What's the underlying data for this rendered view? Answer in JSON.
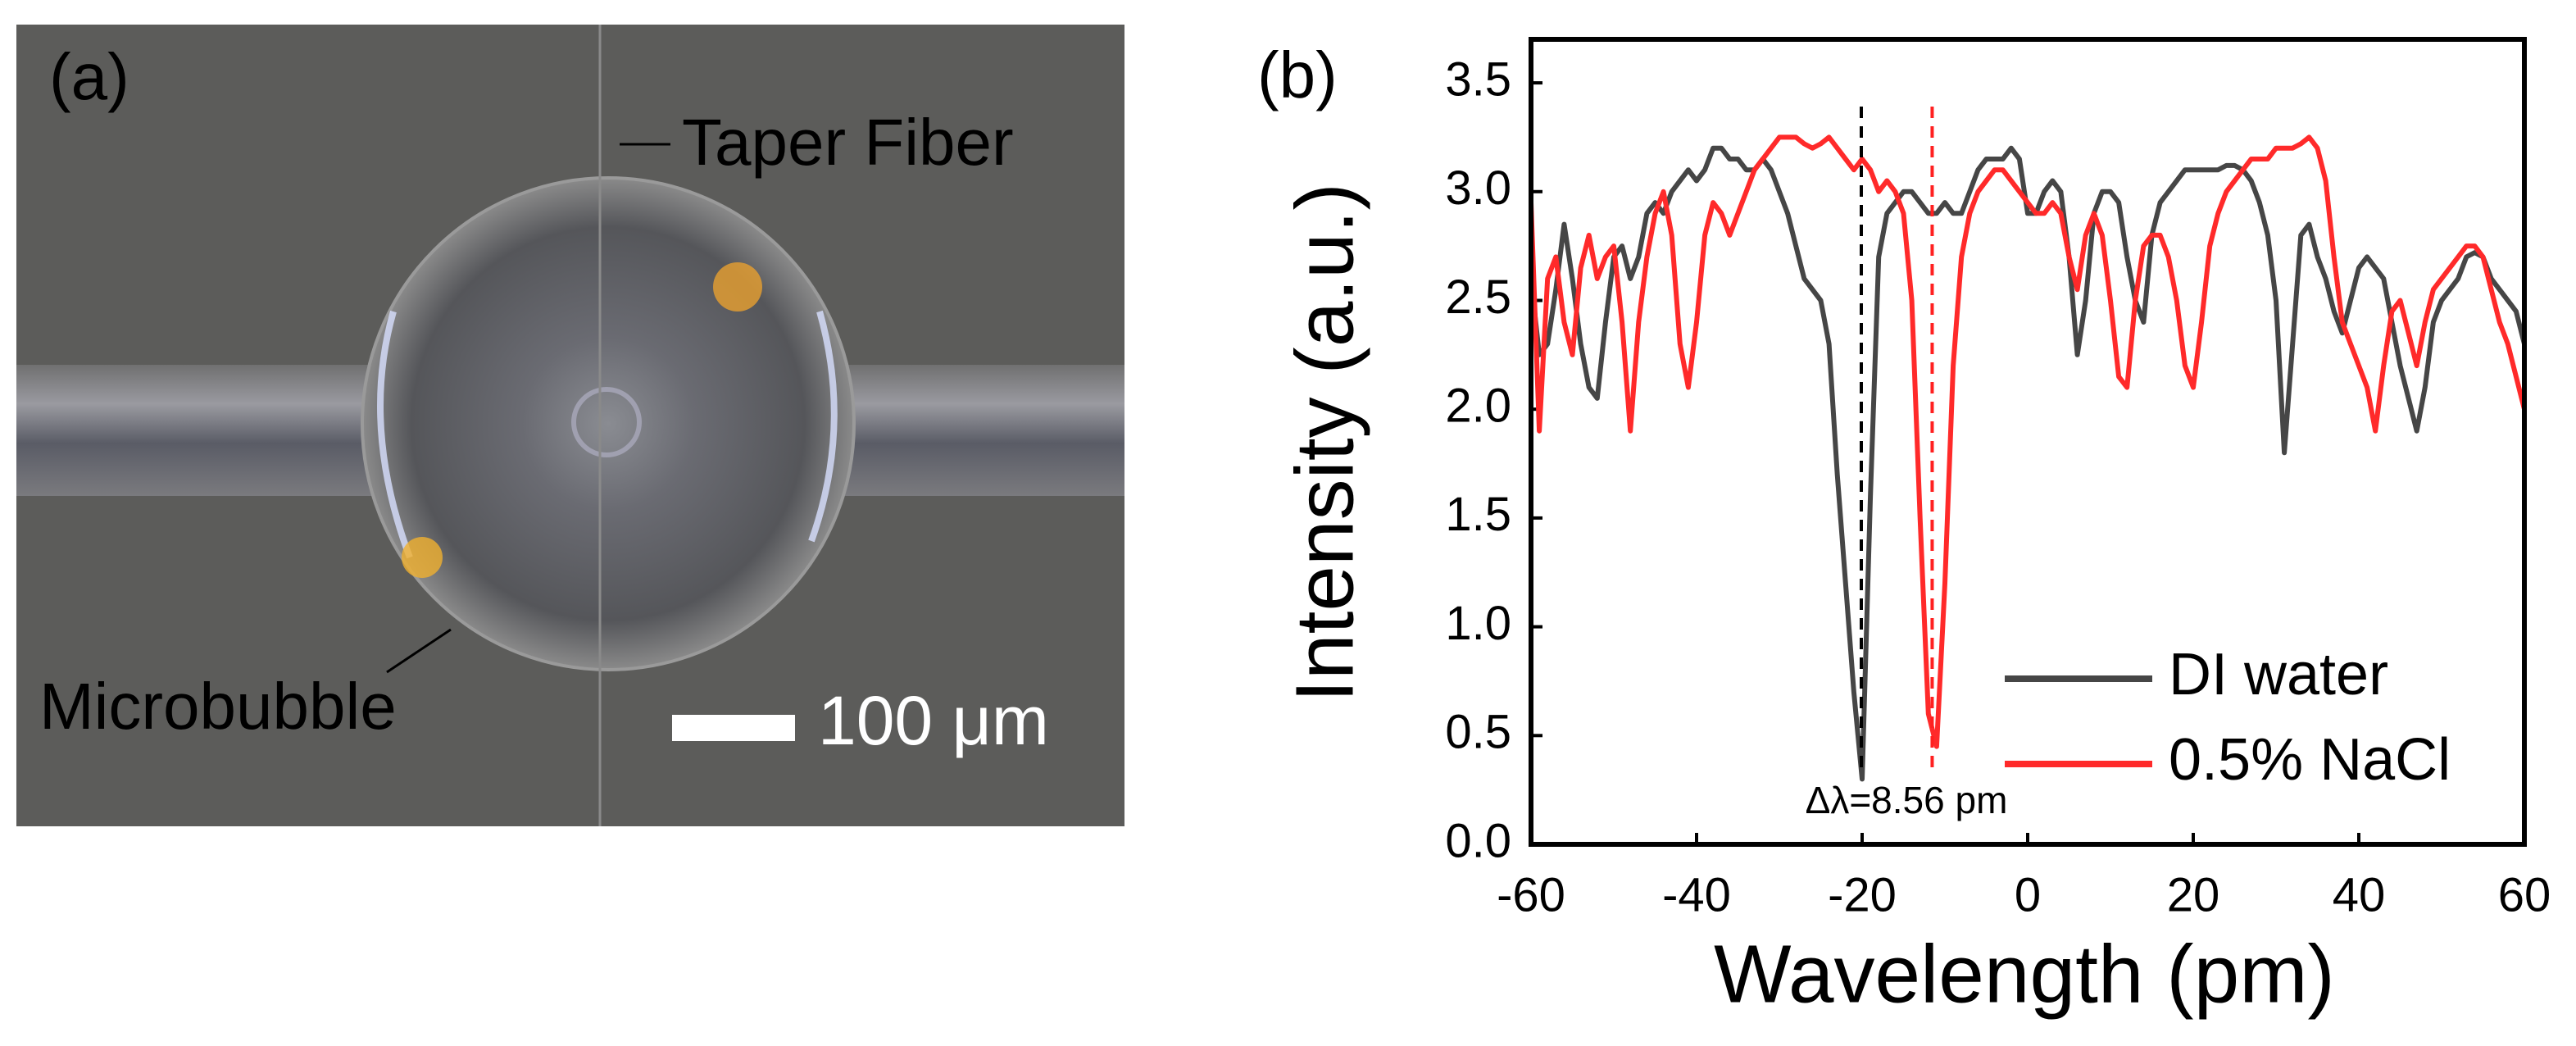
{
  "panel_a": {
    "label": "(a)",
    "annotations": [
      "Taper Fiber",
      "Microbubble"
    ],
    "scale_bar": "100 μm"
  },
  "chart_data": {
    "type": "line",
    "panel_label": "(b)",
    "xlabel": "Wavelength (pm)",
    "ylabel": "Intensity (a.u.)",
    "annotation": "Δλ=8.56 pm",
    "reference_lines": [
      {
        "x": -20.1,
        "color": "#000000"
      },
      {
        "x": -11.54,
        "color": "#ff2020"
      }
    ],
    "xlim": [
      -60,
      60
    ],
    "xticks": [
      -60,
      -40,
      -20,
      0,
      20,
      40,
      60
    ],
    "ylim": [
      0,
      3.7
    ],
    "yticks": [
      {
        "value": 0,
        "label": "0.0"
      },
      0.5,
      {
        "value": 1,
        "label": "1.0"
      },
      1.5,
      {
        "value": 2,
        "label": "2.0"
      },
      2.5,
      {
        "value": 3,
        "label": "3.0"
      },
      3.5
    ],
    "legend": "lower right",
    "x": [
      -60,
      -59,
      -58,
      -57,
      -56,
      -55,
      -54,
      -53,
      -52,
      -51,
      -50,
      -49,
      -48,
      -47,
      -46,
      -45,
      -44,
      -43,
      -42,
      -41,
      -40,
      -39,
      -38,
      -37,
      -36,
      -35,
      -34,
      -33,
      -32,
      -31,
      -30,
      -29,
      -28,
      -27,
      -26,
      -25,
      -24,
      -23,
      -22,
      -21,
      -20,
      -19,
      -18,
      -17,
      -16,
      -15,
      -14,
      -13,
      -12,
      -11,
      -10,
      -9,
      -8,
      -7,
      -6,
      -5,
      -4,
      -3,
      -2,
      -1,
      0,
      1,
      2,
      3,
      4,
      5,
      6,
      7,
      8,
      9,
      10,
      11,
      12,
      13,
      14,
      15,
      16,
      17,
      18,
      19,
      20,
      21,
      22,
      23,
      24,
      25,
      26,
      27,
      28,
      29,
      30,
      31,
      32,
      33,
      34,
      35,
      36,
      37,
      38,
      39,
      40,
      41,
      42,
      43,
      44,
      45,
      46,
      47,
      48,
      49,
      50,
      51,
      52,
      53,
      54,
      55,
      56,
      57,
      58,
      59,
      60
    ],
    "series": [
      {
        "name": "DI water",
        "color": "#464646",
        "values": [
          2.6,
          2.25,
          2.3,
          2.55,
          2.85,
          2.6,
          2.3,
          2.1,
          2.05,
          2.4,
          2.7,
          2.75,
          2.6,
          2.7,
          2.9,
          2.95,
          2.9,
          3.0,
          3.05,
          3.1,
          3.05,
          3.1,
          3.2,
          3.2,
          3.15,
          3.15,
          3.1,
          3.1,
          3.15,
          3.1,
          3.0,
          2.9,
          2.75,
          2.6,
          2.55,
          2.5,
          2.3,
          1.7,
          1.2,
          0.7,
          0.3,
          1.6,
          2.7,
          2.9,
          2.95,
          3.0,
          3.0,
          2.95,
          2.9,
          2.9,
          2.95,
          2.9,
          2.9,
          3.0,
          3.1,
          3.15,
          3.15,
          3.15,
          3.2,
          3.15,
          2.9,
          2.9,
          3.0,
          3.05,
          3.0,
          2.7,
          2.25,
          2.5,
          2.9,
          3.0,
          3.0,
          2.95,
          2.7,
          2.5,
          2.4,
          2.8,
          2.95,
          3.0,
          3.05,
          3.1,
          3.1,
          3.1,
          3.1,
          3.1,
          3.12,
          3.12,
          3.1,
          3.05,
          2.95,
          2.8,
          2.5,
          1.8,
          2.3,
          2.8,
          2.85,
          2.7,
          2.6,
          2.45,
          2.35,
          2.5,
          2.65,
          2.7,
          2.65,
          2.6,
          2.4,
          2.2,
          2.05,
          1.9,
          2.1,
          2.4,
          2.5,
          2.55,
          2.6,
          2.7,
          2.72,
          2.7,
          2.6,
          2.55,
          2.5,
          2.45,
          2.3
        ]
      },
      {
        "name": "0.5% NaCl",
        "color": "#ff2a2a",
        "values": [
          2.95,
          1.9,
          2.6,
          2.7,
          2.4,
          2.25,
          2.65,
          2.8,
          2.6,
          2.7,
          2.75,
          2.4,
          1.9,
          2.4,
          2.7,
          2.9,
          3.0,
          2.8,
          2.3,
          2.1,
          2.4,
          2.8,
          2.95,
          2.9,
          2.8,
          2.9,
          3.0,
          3.1,
          3.15,
          3.2,
          3.25,
          3.25,
          3.25,
          3.22,
          3.2,
          3.22,
          3.25,
          3.2,
          3.15,
          3.1,
          3.15,
          3.1,
          3.0,
          3.05,
          3.0,
          2.9,
          2.5,
          1.5,
          0.6,
          0.45,
          1.2,
          2.2,
          2.7,
          2.9,
          3.0,
          3.05,
          3.1,
          3.1,
          3.05,
          3.0,
          2.95,
          2.9,
          2.9,
          2.95,
          2.9,
          2.7,
          2.55,
          2.8,
          2.9,
          2.8,
          2.5,
          2.15,
          2.1,
          2.5,
          2.75,
          2.8,
          2.8,
          2.7,
          2.5,
          2.2,
          2.1,
          2.4,
          2.75,
          2.9,
          3.0,
          3.05,
          3.1,
          3.15,
          3.15,
          3.15,
          3.2,
          3.2,
          3.2,
          3.22,
          3.25,
          3.2,
          3.05,
          2.7,
          2.4,
          2.3,
          2.2,
          2.1,
          1.9,
          2.2,
          2.45,
          2.5,
          2.35,
          2.2,
          2.4,
          2.55,
          2.6,
          2.65,
          2.7,
          2.75,
          2.75,
          2.7,
          2.55,
          2.4,
          2.3,
          2.15,
          2.0
        ]
      }
    ]
  }
}
